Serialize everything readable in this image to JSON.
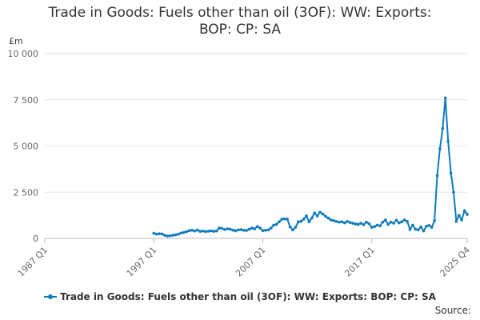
{
  "chart_data": {
    "type": "line",
    "title_line1": "Trade in Goods: Fuels other than oil (3OF): WW: Exports:",
    "title_line2": "BOP: CP: SA",
    "ylabel": "£m",
    "ylim": [
      0,
      10000
    ],
    "yticks": [
      {
        "value": 0,
        "label": "0"
      },
      {
        "value": 2500,
        "label": "2 500"
      },
      {
        "value": 5000,
        "label": "5 000"
      },
      {
        "value": 7500,
        "label": "7 500"
      },
      {
        "value": 10000,
        "label": "10 000"
      }
    ],
    "xticks": [
      {
        "value": "1987 Q1",
        "label": "1987 Q1"
      },
      {
        "value": "1997 Q1",
        "label": "1997 Q1"
      },
      {
        "value": "2007 Q1",
        "label": "2007 Q1"
      },
      {
        "value": "2017 Q1",
        "label": "2017 Q1"
      },
      {
        "value": "2025 Q4",
        "label": "2025 Q4"
      }
    ],
    "x_start": "1987 Q1",
    "x_end": "2025 Q4",
    "grid": true,
    "legend_position": "bottom",
    "color": "#0f7bbd",
    "source_label": "Source:",
    "series": [
      {
        "name": "Trade in Goods: Fuels other than oil (3OF): WW: Exports: BOP: CP: SA",
        "points": [
          [
            "1997 Q1",
            280
          ],
          [
            "1997 Q2",
            230
          ],
          [
            "1997 Q3",
            250
          ],
          [
            "1997 Q4",
            240
          ],
          [
            "1998 Q1",
            170
          ],
          [
            "1998 Q2",
            130
          ],
          [
            "1998 Q3",
            140
          ],
          [
            "1998 Q4",
            170
          ],
          [
            "1999 Q1",
            190
          ],
          [
            "1999 Q2",
            230
          ],
          [
            "1999 Q3",
            290
          ],
          [
            "1999 Q4",
            320
          ],
          [
            "2000 Q1",
            360
          ],
          [
            "2000 Q2",
            420
          ],
          [
            "2000 Q3",
            440
          ],
          [
            "2000 Q4",
            400
          ],
          [
            "2001 Q1",
            450
          ],
          [
            "2001 Q2",
            380
          ],
          [
            "2001 Q3",
            400
          ],
          [
            "2001 Q4",
            370
          ],
          [
            "2002 Q1",
            390
          ],
          [
            "2002 Q2",
            410
          ],
          [
            "2002 Q3",
            380
          ],
          [
            "2002 Q4",
            400
          ],
          [
            "2003 Q1",
            560
          ],
          [
            "2003 Q2",
            540
          ],
          [
            "2003 Q3",
            480
          ],
          [
            "2003 Q4",
            520
          ],
          [
            "2004 Q1",
            500
          ],
          [
            "2004 Q2",
            450
          ],
          [
            "2004 Q3",
            410
          ],
          [
            "2004 Q4",
            460
          ],
          [
            "2005 Q1",
            480
          ],
          [
            "2005 Q2",
            440
          ],
          [
            "2005 Q3",
            430
          ],
          [
            "2005 Q4",
            490
          ],
          [
            "2006 Q1",
            560
          ],
          [
            "2006 Q2",
            520
          ],
          [
            "2006 Q3",
            640
          ],
          [
            "2006 Q4",
            560
          ],
          [
            "2007 Q1",
            420
          ],
          [
            "2007 Q2",
            440
          ],
          [
            "2007 Q3",
            460
          ],
          [
            "2007 Q4",
            560
          ],
          [
            "2008 Q1",
            720
          ],
          [
            "2008 Q2",
            760
          ],
          [
            "2008 Q3",
            900
          ],
          [
            "2008 Q4",
            1040
          ],
          [
            "2009 Q1",
            1060
          ],
          [
            "2009 Q2",
            1040
          ],
          [
            "2009 Q3",
            620
          ],
          [
            "2009 Q4",
            460
          ],
          [
            "2010 Q1",
            600
          ],
          [
            "2010 Q2",
            900
          ],
          [
            "2010 Q3",
            920
          ],
          [
            "2010 Q4",
            1040
          ],
          [
            "2011 Q1",
            1220
          ],
          [
            "2011 Q2",
            900
          ],
          [
            "2011 Q3",
            1100
          ],
          [
            "2011 Q4",
            1380
          ],
          [
            "2012 Q1",
            1220
          ],
          [
            "2012 Q2",
            1420
          ],
          [
            "2012 Q3",
            1320
          ],
          [
            "2012 Q4",
            1200
          ],
          [
            "2013 Q1",
            1100
          ],
          [
            "2013 Q2",
            1000
          ],
          [
            "2013 Q3",
            960
          ],
          [
            "2013 Q4",
            920
          ],
          [
            "2014 Q1",
            880
          ],
          [
            "2014 Q2",
            900
          ],
          [
            "2014 Q3",
            840
          ],
          [
            "2014 Q4",
            920
          ],
          [
            "2015 Q1",
            860
          ],
          [
            "2015 Q2",
            820
          ],
          [
            "2015 Q3",
            780
          ],
          [
            "2015 Q4",
            760
          ],
          [
            "2016 Q1",
            820
          ],
          [
            "2016 Q2",
            740
          ],
          [
            "2016 Q3",
            880
          ],
          [
            "2016 Q4",
            800
          ],
          [
            "2017 Q1",
            600
          ],
          [
            "2017 Q2",
            640
          ],
          [
            "2017 Q3",
            720
          ],
          [
            "2017 Q4",
            680
          ],
          [
            "2018 Q1",
            880
          ],
          [
            "2018 Q2",
            1000
          ],
          [
            "2018 Q3",
            760
          ],
          [
            "2018 Q4",
            880
          ],
          [
            "2019 Q1",
            820
          ],
          [
            "2019 Q2",
            980
          ],
          [
            "2019 Q3",
            840
          ],
          [
            "2019 Q4",
            900
          ],
          [
            "2020 Q1",
            1000
          ],
          [
            "2020 Q2",
            920
          ],
          [
            "2020 Q3",
            480
          ],
          [
            "2020 Q4",
            720
          ],
          [
            "2021 Q1",
            500
          ],
          [
            "2021 Q2",
            460
          ],
          [
            "2021 Q3",
            620
          ],
          [
            "2021 Q4",
            400
          ],
          [
            "2022 Q1",
            660
          ],
          [
            "2022 Q2",
            700
          ],
          [
            "2022 Q3",
            600
          ],
          [
            "2022 Q4",
            960
          ],
          [
            "2023 Q1",
            3400
          ],
          [
            "2023 Q2",
            4850
          ],
          [
            "2023 Q3",
            5950
          ],
          [
            "2023 Q4",
            7600
          ],
          [
            "2024 Q1",
            5250
          ],
          [
            "2024 Q2",
            3550
          ],
          [
            "2024 Q3",
            2500
          ],
          [
            "2024 Q4",
            920
          ],
          [
            "2025 Q1",
            1250
          ],
          [
            "2025 Q2",
            1000
          ],
          [
            "2025 Q3",
            1500
          ],
          [
            "2025 Q4",
            1300
          ]
        ]
      }
    ]
  }
}
